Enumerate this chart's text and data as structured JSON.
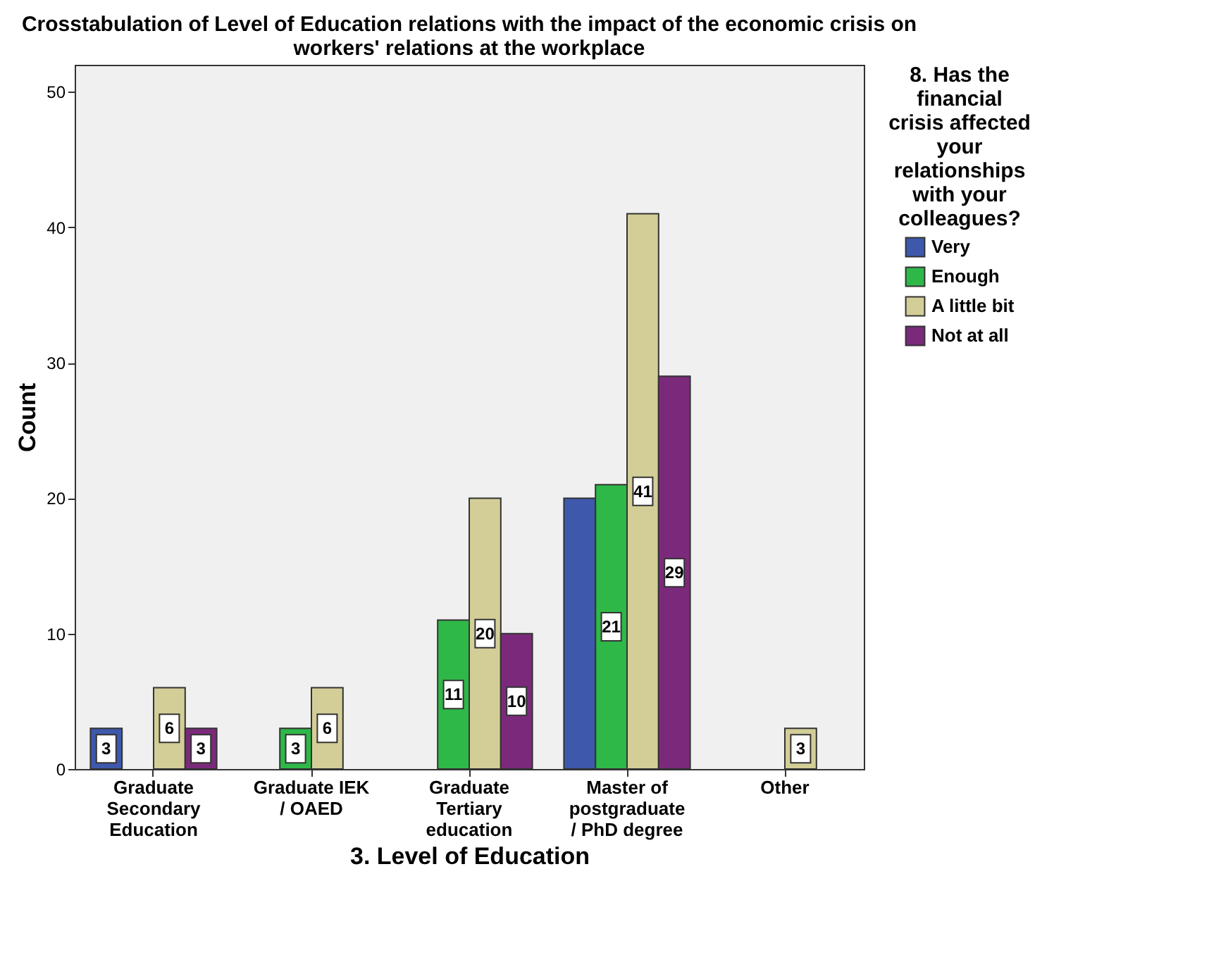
{
  "chart_data": {
    "type": "bar",
    "title": "Crosstabulation of Level of Education relations with the impact of the economic crisis on workers' relations at the workplace",
    "xlabel": "3. Level of Education",
    "ylabel": "Count",
    "legend_title": "8. Has the financial crisis affected your relationships with your colleagues?",
    "categories": [
      "Graduate Secondary Education",
      "Graduate IEK / OAED",
      "Graduate Tertiary education",
      "Master of postgraduate / PhD degree",
      "Other"
    ],
    "series": [
      {
        "name": "Very",
        "color": "#3e58ac",
        "values": [
          3,
          null,
          null,
          20,
          null
        ],
        "value_labels": [
          "3",
          null,
          null,
          null,
          null
        ]
      },
      {
        "name": "Enough",
        "color": "#2eb848",
        "values": [
          null,
          3,
          11,
          21,
          null
        ],
        "value_labels": [
          null,
          "3",
          "11",
          "21",
          null
        ]
      },
      {
        "name": "A little bit",
        "color": "#d3ce97",
        "values": [
          6,
          6,
          20,
          41,
          3
        ],
        "value_labels": [
          "6",
          "6",
          "20",
          "41",
          "3"
        ]
      },
      {
        "name": "Not at all",
        "color": "#7b2a7b",
        "values": [
          3,
          null,
          10,
          29,
          null
        ],
        "value_labels": [
          "3",
          null,
          "10",
          "29",
          null
        ]
      }
    ],
    "ylim": [
      0,
      52
    ],
    "yticks": [
      0,
      10,
      20,
      30,
      40,
      50
    ],
    "grid": false,
    "legend": "right"
  }
}
